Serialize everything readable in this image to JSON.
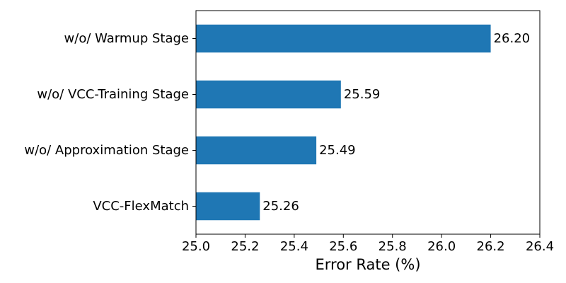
{
  "chart_data": {
    "type": "bar",
    "orientation": "horizontal",
    "categories": [
      "w/o/ Warmup Stage",
      "w/o/ VCC-Training Stage",
      "w/o/ Approximation Stage",
      "VCC-FlexMatch"
    ],
    "values": [
      26.2,
      25.59,
      25.49,
      25.26
    ],
    "value_labels": [
      "26.20",
      "25.59",
      "25.49",
      "25.26"
    ],
    "title": "",
    "xlabel": "Error Rate (%)",
    "ylabel": "",
    "xlim": [
      25.0,
      26.4
    ],
    "xticks": [
      25.0,
      25.2,
      25.4,
      25.6,
      25.8,
      26.0,
      26.2,
      26.4
    ],
    "xtick_labels": [
      "25.0",
      "25.2",
      "25.4",
      "25.6",
      "25.8",
      "26.0",
      "26.2",
      "26.4"
    ],
    "grid": false,
    "legend": "none",
    "bar_color": "#1f77b4"
  }
}
